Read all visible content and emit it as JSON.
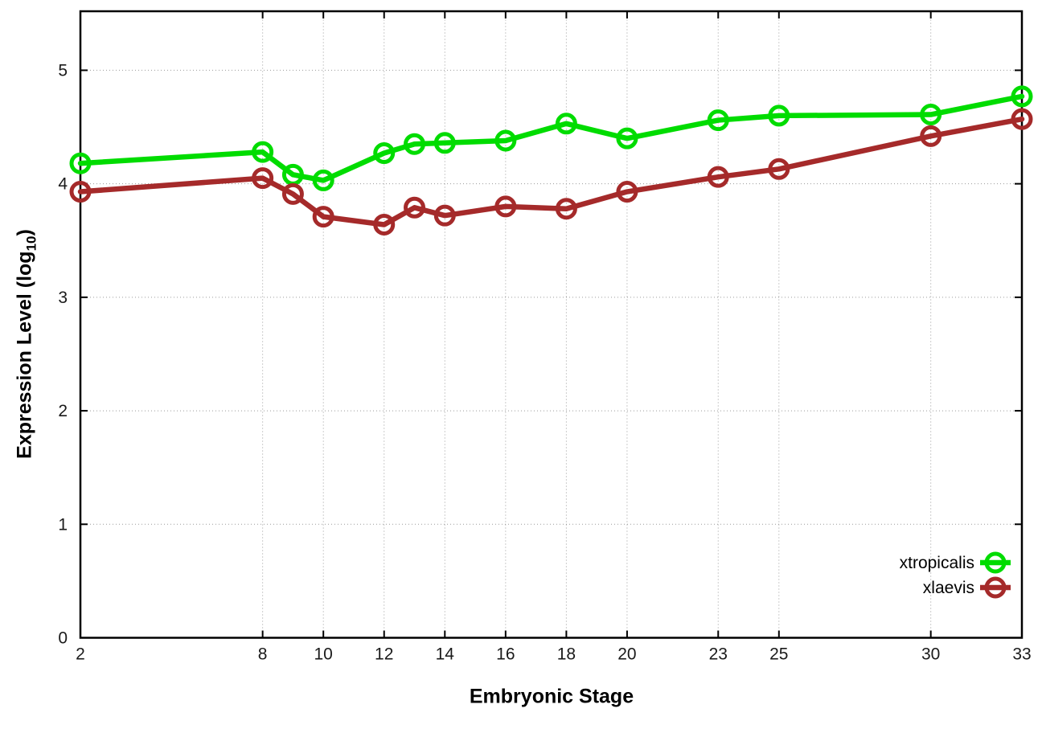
{
  "chart_data": {
    "type": "line",
    "title": "",
    "xlabel": "Embryonic Stage",
    "ylabel": "Expression Level (log10)",
    "ylabel_parts": [
      "Expression Level (log",
      "10",
      ")"
    ],
    "x": [
      2,
      8,
      9,
      10,
      12,
      13,
      14,
      16,
      18,
      20,
      23,
      25,
      30,
      33
    ],
    "x_tick_labels": [
      2,
      8,
      10,
      12,
      14,
      16,
      18,
      20,
      23,
      25,
      30,
      33
    ],
    "y_tick_labels": [
      0,
      1,
      2,
      3,
      4,
      5
    ],
    "xlim": [
      2,
      33
    ],
    "ylim": [
      0,
      5.52
    ],
    "grid": true,
    "legend_position": "inside-bottom-right",
    "series": [
      {
        "name": "xtropicalis",
        "color": "#00dc00",
        "values": [
          4.18,
          4.28,
          4.08,
          4.03,
          4.27,
          4.35,
          4.36,
          4.38,
          4.53,
          4.4,
          4.56,
          4.6,
          4.61,
          4.77
        ]
      },
      {
        "name": "xlaevis",
        "color": "#a52a2a",
        "values": [
          3.93,
          4.05,
          3.91,
          3.71,
          3.64,
          3.79,
          3.72,
          3.8,
          3.78,
          3.93,
          4.06,
          4.13,
          4.42,
          4.57
        ]
      }
    ],
    "colors": {
      "axis": "#000000",
      "grid": "#9a9a9a",
      "tick_text": "#1a1a1a"
    }
  }
}
